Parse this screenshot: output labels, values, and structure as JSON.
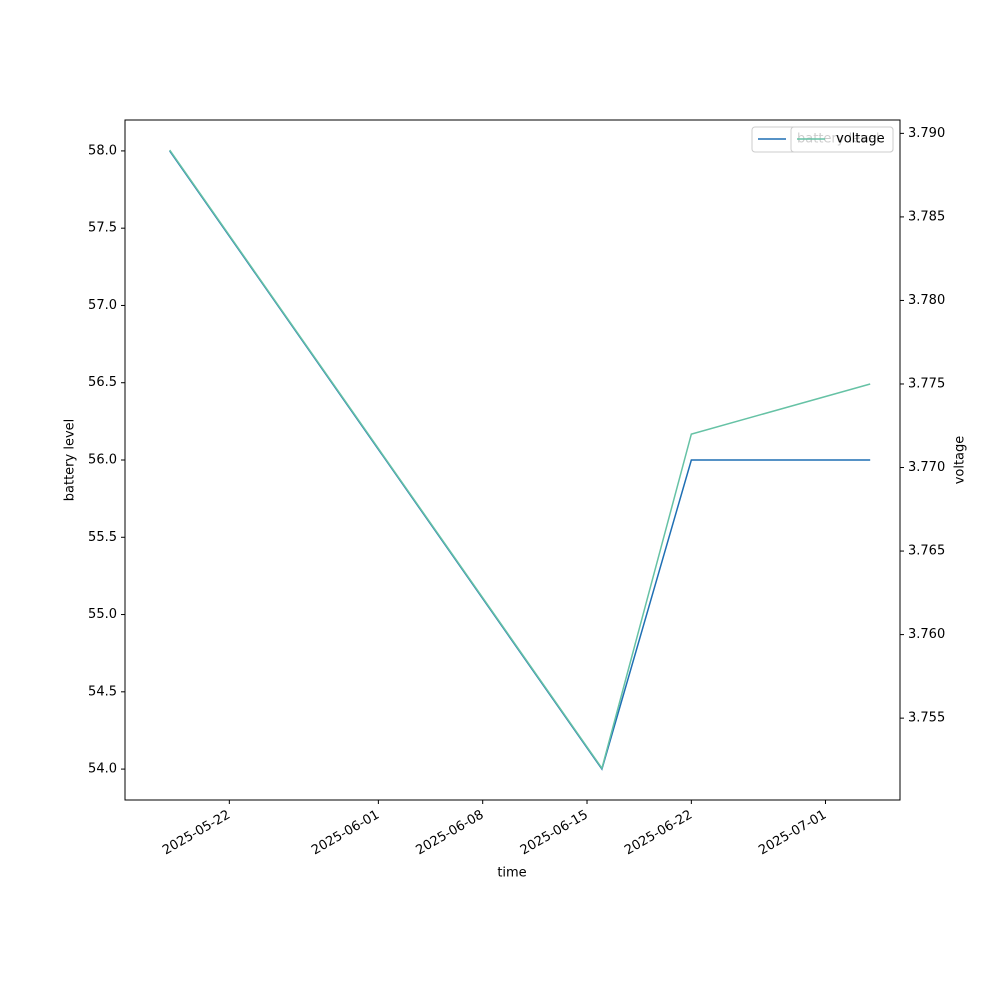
{
  "chart_data": {
    "type": "line",
    "x": [
      "2025-05-18",
      "2025-06-16",
      "2025-06-22",
      "2025-07-04"
    ],
    "xlim": [
      "2025-05-15",
      "2025-07-06"
    ],
    "xticks": [
      "2025-05-22",
      "2025-06-01",
      "2025-06-08",
      "2025-06-15",
      "2025-06-22",
      "2025-07-01"
    ],
    "xlabel": "time",
    "ylabel": "battery level",
    "y2label": "voltage",
    "ylim": [
      53.8,
      58.2
    ],
    "yticks": [
      {
        "value": 54,
        "label": "54.0"
      },
      54.5,
      {
        "value": 55,
        "label": "55.0"
      },
      55.5,
      {
        "value": 56,
        "label": "56.0"
      },
      56.5,
      {
        "value": 57,
        "label": "57.0"
      },
      57.5,
      {
        "value": 58,
        "label": "58.0"
      }
    ],
    "y2lim": [
      3.7501,
      3.7908
    ],
    "y2ticks": [
      3.755,
      {
        "value": 3.76,
        "label": "3.760"
      },
      3.765,
      {
        "value": 3.77,
        "label": "3.770"
      },
      3.775,
      {
        "value": 3.78,
        "label": "3.780"
      },
      3.785,
      {
        "value": 3.79,
        "label": "3.790"
      }
    ],
    "series": [
      {
        "name": "battery level",
        "color": "#1f6fb4",
        "axis": "y",
        "values": [
          58,
          54,
          56,
          56
        ]
      },
      {
        "name": "voltage",
        "color": "#66c2a5",
        "axis": "y2",
        "values": [
          3.789,
          3.752,
          3.772,
          3.775
        ]
      }
    ]
  }
}
